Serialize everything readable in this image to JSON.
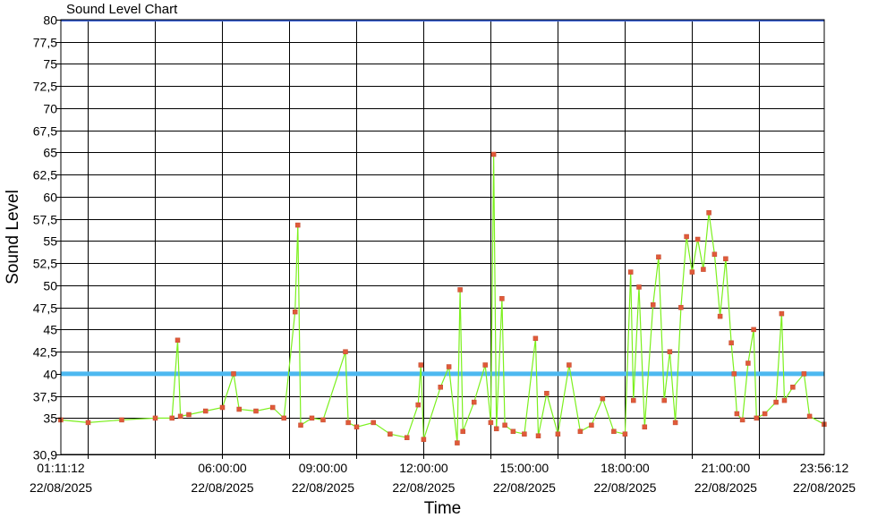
{
  "chart_data": {
    "type": "line",
    "title": "Sound Level Chart",
    "xlabel": "Time",
    "ylabel": "Sound Level",
    "ylim": [
      30.9,
      80
    ],
    "y_ticks": [
      "80",
      "77,5",
      "75",
      "72,5",
      "70",
      "67,5",
      "65",
      "62,5",
      "60",
      "57,5",
      "55",
      "52,5",
      "50",
      "47,5",
      "45",
      "42,5",
      "40",
      "37,5",
      "35",
      "30,9"
    ],
    "x_range": [
      "01:11:12",
      "23:56:12"
    ],
    "x_ticks": [
      {
        "time": "01:11:12",
        "date": "22/08/2025"
      },
      {
        "time": "06:00:00",
        "date": "22/08/2025"
      },
      {
        "time": "09:00:00",
        "date": "22/08/2025"
      },
      {
        "time": "12:00:00",
        "date": "22/08/2025"
      },
      {
        "time": "15:00:00",
        "date": "22/08/2025"
      },
      {
        "time": "18:00:00",
        "date": "22/08/2025"
      },
      {
        "time": "21:00:00",
        "date": "22/08/2025"
      },
      {
        "time": "23:56:12",
        "date": "22/08/2025"
      }
    ],
    "threshold": 40,
    "grid": true,
    "colors": {
      "line": "#7cf01e",
      "markers": "#e05a3a",
      "threshold": "#4db8f0",
      "top_line": "#3a62d8",
      "grid": "#000000"
    },
    "series": [
      {
        "points": [
          {
            "x": "01:11",
            "y": 34.8
          },
          {
            "x": "02:00",
            "y": 34.5
          },
          {
            "x": "03:00",
            "y": 34.8
          },
          {
            "x": "04:00",
            "y": 35.0
          },
          {
            "x": "04:30",
            "y": 35.0
          },
          {
            "x": "04:40",
            "y": 43.8
          },
          {
            "x": "04:45",
            "y": 35.2
          },
          {
            "x": "05:00",
            "y": 35.4
          },
          {
            "x": "05:30",
            "y": 35.8
          },
          {
            "x": "06:00",
            "y": 36.2
          },
          {
            "x": "06:20",
            "y": 40.0
          },
          {
            "x": "06:30",
            "y": 36.0
          },
          {
            "x": "07:00",
            "y": 35.8
          },
          {
            "x": "07:30",
            "y": 36.2
          },
          {
            "x": "07:50",
            "y": 35.0
          },
          {
            "x": "08:10",
            "y": 47.0
          },
          {
            "x": "08:15",
            "y": 56.8
          },
          {
            "x": "08:20",
            "y": 34.2
          },
          {
            "x": "08:40",
            "y": 35.0
          },
          {
            "x": "09:00",
            "y": 34.8
          },
          {
            "x": "09:40",
            "y": 42.5
          },
          {
            "x": "09:45",
            "y": 34.5
          },
          {
            "x": "10:00",
            "y": 34.0
          },
          {
            "x": "10:30",
            "y": 34.5
          },
          {
            "x": "11:00",
            "y": 33.2
          },
          {
            "x": "11:30",
            "y": 32.8
          },
          {
            "x": "11:50",
            "y": 36.5
          },
          {
            "x": "11:55",
            "y": 41.0
          },
          {
            "x": "12:00",
            "y": 32.6
          },
          {
            "x": "12:30",
            "y": 38.5
          },
          {
            "x": "12:45",
            "y": 40.8
          },
          {
            "x": "13:00",
            "y": 32.2
          },
          {
            "x": "13:05",
            "y": 49.5
          },
          {
            "x": "13:10",
            "y": 33.5
          },
          {
            "x": "13:30",
            "y": 36.8
          },
          {
            "x": "13:50",
            "y": 41.0
          },
          {
            "x": "14:00",
            "y": 34.5
          },
          {
            "x": "14:05",
            "y": 64.8
          },
          {
            "x": "14:10",
            "y": 33.8
          },
          {
            "x": "14:20",
            "y": 48.5
          },
          {
            "x": "14:25",
            "y": 34.2
          },
          {
            "x": "14:40",
            "y": 33.5
          },
          {
            "x": "15:00",
            "y": 33.2
          },
          {
            "x": "15:20",
            "y": 44.0
          },
          {
            "x": "15:25",
            "y": 33.0
          },
          {
            "x": "15:40",
            "y": 37.8
          },
          {
            "x": "16:00",
            "y": 33.2
          },
          {
            "x": "16:20",
            "y": 41.0
          },
          {
            "x": "16:40",
            "y": 33.5
          },
          {
            "x": "17:00",
            "y": 34.2
          },
          {
            "x": "17:20",
            "y": 37.2
          },
          {
            "x": "17:40",
            "y": 33.5
          },
          {
            "x": "18:00",
            "y": 33.2
          },
          {
            "x": "18:10",
            "y": 51.5
          },
          {
            "x": "18:15",
            "y": 37.0
          },
          {
            "x": "18:25",
            "y": 49.8
          },
          {
            "x": "18:35",
            "y": 34.0
          },
          {
            "x": "18:50",
            "y": 47.8
          },
          {
            "x": "19:00",
            "y": 53.2
          },
          {
            "x": "19:10",
            "y": 37.0
          },
          {
            "x": "19:20",
            "y": 42.5
          },
          {
            "x": "19:30",
            "y": 34.5
          },
          {
            "x": "19:40",
            "y": 47.5
          },
          {
            "x": "19:50",
            "y": 55.5
          },
          {
            "x": "20:00",
            "y": 51.5
          },
          {
            "x": "20:10",
            "y": 55.2
          },
          {
            "x": "20:20",
            "y": 51.8
          },
          {
            "x": "20:30",
            "y": 58.2
          },
          {
            "x": "20:40",
            "y": 53.5
          },
          {
            "x": "20:50",
            "y": 46.5
          },
          {
            "x": "21:00",
            "y": 53.0
          },
          {
            "x": "21:10",
            "y": 43.5
          },
          {
            "x": "21:15",
            "y": 40.0
          },
          {
            "x": "21:20",
            "y": 35.5
          },
          {
            "x": "21:30",
            "y": 34.8
          },
          {
            "x": "21:40",
            "y": 41.2
          },
          {
            "x": "21:50",
            "y": 45.0
          },
          {
            "x": "21:55",
            "y": 35.0
          },
          {
            "x": "22:10",
            "y": 35.5
          },
          {
            "x": "22:30",
            "y": 36.8
          },
          {
            "x": "22:40",
            "y": 46.8
          },
          {
            "x": "22:45",
            "y": 37.0
          },
          {
            "x": "23:00",
            "y": 38.5
          },
          {
            "x": "23:20",
            "y": 40.0
          },
          {
            "x": "23:30",
            "y": 35.2
          },
          {
            "x": "23:56",
            "y": 34.3
          }
        ]
      }
    ]
  }
}
